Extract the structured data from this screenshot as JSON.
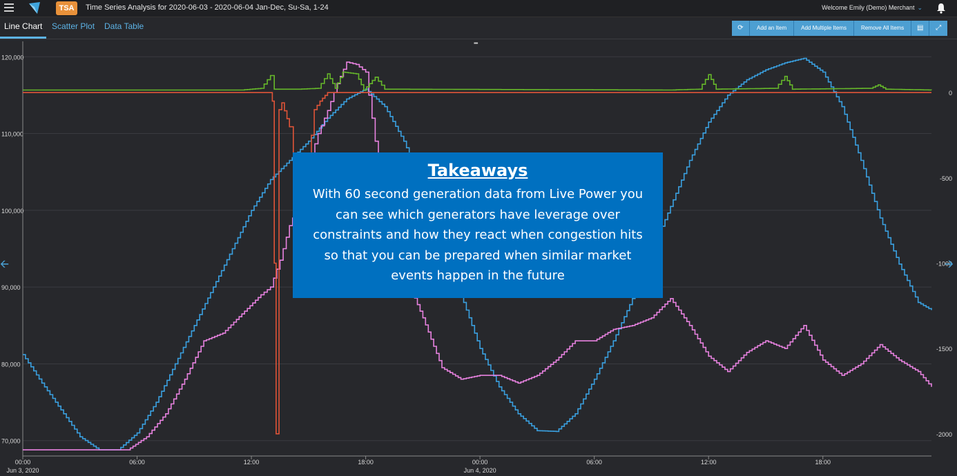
{
  "header": {
    "badge": "TSA",
    "title": "Time Series Analysis for 2020-06-03 - 2020-06-04 Jan-Dec, Su-Sa, 1-24",
    "welcome": "Welcome Emily (Demo) Merchant"
  },
  "tabs": [
    {
      "label": "Line Chart"
    },
    {
      "label": "Scatter Plot"
    },
    {
      "label": "Data Table"
    }
  ],
  "toolbar": {
    "refresh_icon": "refresh-icon",
    "add_item": "Add an Item",
    "add_multiple": "Add Multiple Items",
    "remove_all": "Remove All Items",
    "document_icon": "document-icon",
    "expand_icon": "expand-icon"
  },
  "callout": {
    "heading": "Takeaways",
    "lines": [
      "With 60 second generation data from Live Power you",
      "can see which generators have leverage over",
      "constraints and how they react when congestion hits",
      "so that you can be prepared when similar market",
      "events happen in the future"
    ]
  },
  "chart_data": {
    "type": "line",
    "x_ticks": [
      "00:00",
      "06:00",
      "12:00",
      "18:00",
      "00:00",
      "06:00",
      "12:00",
      "18:00"
    ],
    "x_dates": [
      "Jun 3, 2020",
      "Jun 4, 2020"
    ],
    "xlim_hours": [
      0,
      47.7
    ],
    "y_left": {
      "ticks": [
        "70,000",
        "80,000",
        "90,000",
        "100,000",
        "110,000",
        "120,000"
      ],
      "range": [
        68000,
        122000
      ]
    },
    "y_right": {
      "ticks": [
        "0",
        "-500",
        "-1000",
        "-1500",
        "-2000"
      ],
      "range": [
        -2130,
        300
      ]
    },
    "grid": true,
    "series": [
      {
        "color": "#3aa0e0",
        "axis": "left",
        "points": [
          [
            0,
            81200
          ],
          [
            1,
            77500
          ],
          [
            2,
            74000
          ],
          [
            3,
            70500
          ],
          [
            4,
            68800
          ],
          [
            5,
            68800
          ],
          [
            6,
            71000
          ],
          [
            7,
            75000
          ],
          [
            8,
            80000
          ],
          [
            9,
            85000
          ],
          [
            10,
            90000
          ],
          [
            11,
            95000
          ],
          [
            12,
            100000
          ],
          [
            13,
            104000
          ],
          [
            14,
            106500
          ],
          [
            15,
            109000
          ],
          [
            16,
            112000
          ],
          [
            17,
            114500
          ],
          [
            18,
            115800
          ],
          [
            19,
            113500
          ],
          [
            20,
            109000
          ],
          [
            21,
            103000
          ],
          [
            22,
            96000
          ],
          [
            23,
            89000
          ],
          [
            24,
            82000
          ],
          [
            25,
            77000
          ],
          [
            26,
            73500
          ],
          [
            27,
            71300
          ],
          [
            28,
            71200
          ],
          [
            29,
            73500
          ],
          [
            30,
            78000
          ],
          [
            31,
            83000
          ],
          [
            32,
            88500
          ],
          [
            33,
            94500
          ],
          [
            34,
            100500
          ],
          [
            35,
            106500
          ],
          [
            36,
            111500
          ],
          [
            37,
            115000
          ],
          [
            38,
            117000
          ],
          [
            39,
            118300
          ],
          [
            40,
            119200
          ],
          [
            41,
            119800
          ],
          [
            42,
            118000
          ],
          [
            43,
            113500
          ],
          [
            44,
            106500
          ],
          [
            45,
            99000
          ],
          [
            46,
            93000
          ],
          [
            47,
            88000
          ],
          [
            47.7,
            87000
          ]
        ]
      },
      {
        "color": "#e882e0",
        "axis": "left",
        "points": [
          [
            0,
            68800
          ],
          [
            5.5,
            68800
          ],
          [
            6.5,
            70500
          ],
          [
            7.5,
            73500
          ],
          [
            8.5,
            78000
          ],
          [
            9.5,
            83000
          ],
          [
            10.5,
            84000
          ],
          [
            11.5,
            86500
          ],
          [
            12.5,
            89000
          ],
          [
            13,
            90000
          ],
          [
            13.5,
            93500
          ],
          [
            14,
            98000
          ],
          [
            14.5,
            101000
          ],
          [
            15,
            106000
          ],
          [
            15.5,
            110000
          ],
          [
            16,
            113000
          ],
          [
            16.5,
            116500
          ],
          [
            17,
            119300
          ],
          [
            17.5,
            119000
          ],
          [
            18,
            118000
          ],
          [
            18.5,
            109000
          ],
          [
            19,
            103000
          ],
          [
            19.5,
            97000
          ],
          [
            20,
            92000
          ],
          [
            21,
            86000
          ],
          [
            22,
            79500
          ],
          [
            23,
            78000
          ],
          [
            24,
            78500
          ],
          [
            25,
            78500
          ],
          [
            26,
            77500
          ],
          [
            27,
            78500
          ],
          [
            28,
            80500
          ],
          [
            29,
            83000
          ],
          [
            30,
            83000
          ],
          [
            31,
            84500
          ],
          [
            32,
            85000
          ],
          [
            33,
            86000
          ],
          [
            34,
            88500
          ],
          [
            35,
            85000
          ],
          [
            36,
            81000
          ],
          [
            37,
            79000
          ],
          [
            38,
            81500
          ],
          [
            39,
            83000
          ],
          [
            40,
            82000
          ],
          [
            41,
            85000
          ],
          [
            42,
            80500
          ],
          [
            43,
            78500
          ],
          [
            44,
            80000
          ],
          [
            45,
            82500
          ],
          [
            46,
            80500
          ],
          [
            47,
            79000
          ],
          [
            47.7,
            77000
          ]
        ]
      },
      {
        "color": "#66b82a",
        "axis": "right",
        "points": [
          [
            0,
            15
          ],
          [
            11.5,
            15
          ],
          [
            12.5,
            25
          ],
          [
            13,
            100
          ],
          [
            13.2,
            20
          ],
          [
            14.5,
            20
          ],
          [
            15.5,
            25
          ],
          [
            16,
            110
          ],
          [
            16.4,
            25
          ],
          [
            16.8,
            120
          ],
          [
            17.5,
            110
          ],
          [
            17.9,
            15
          ],
          [
            18.5,
            90
          ],
          [
            19,
            20
          ],
          [
            34,
            15
          ],
          [
            35.5,
            20
          ],
          [
            36,
            105
          ],
          [
            36.4,
            20
          ],
          [
            39.5,
            25
          ],
          [
            40,
            95
          ],
          [
            40.4,
            20
          ],
          [
            44.5,
            25
          ],
          [
            44.9,
            45
          ],
          [
            45.3,
            20
          ],
          [
            47.7,
            15
          ]
        ]
      },
      {
        "color": "#e05438",
        "axis": "right",
        "points": [
          [
            0,
            0
          ],
          [
            13,
            0
          ],
          [
            13.1,
            -50
          ],
          [
            13.2,
            -1000
          ],
          [
            13.3,
            -2000
          ],
          [
            13.45,
            -100
          ],
          [
            13.6,
            -60
          ],
          [
            14,
            -200
          ],
          [
            14.2,
            -650
          ],
          [
            14.4,
            -700
          ],
          [
            14.6,
            -1000
          ],
          [
            14.8,
            -800
          ],
          [
            15,
            -400
          ],
          [
            15.3,
            -100
          ],
          [
            15.6,
            -50
          ],
          [
            16,
            0
          ],
          [
            47.7,
            0
          ]
        ]
      }
    ]
  }
}
